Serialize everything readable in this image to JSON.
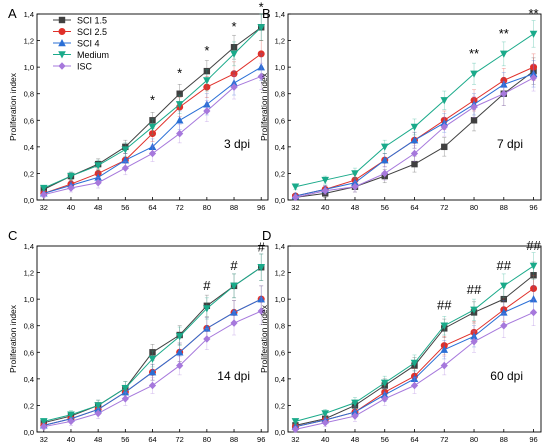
{
  "chart_data": [
    {
      "panel_label": "A",
      "type": "line",
      "x": [
        32,
        40,
        48,
        56,
        64,
        72,
        80,
        88,
        96
      ],
      "ylim": [
        0,
        1.4
      ],
      "yticks": [
        "0,0",
        "0,2",
        "0,4",
        "0,6",
        "0,8",
        "1,0",
        "1,2",
        "1,4"
      ],
      "ylabel": "Proliferation index",
      "annotation": "3 dpi",
      "legend": {
        "position": "top-left",
        "entries": [
          "SCI 1.5",
          "SCI 2.5",
          "SCI 4",
          "Medium",
          "ISC"
        ]
      },
      "significance": [
        {
          "x": 64,
          "mark": "*"
        },
        {
          "x": 72,
          "mark": "*"
        },
        {
          "x": 80,
          "mark": "*"
        },
        {
          "x": 88,
          "mark": "*"
        },
        {
          "x": 96,
          "mark": "*"
        }
      ],
      "series": [
        {
          "name": "SCI 1.5",
          "color": "#404040",
          "marker": "square",
          "values": [
            0.08,
            0.18,
            0.27,
            0.4,
            0.6,
            0.8,
            0.97,
            1.15,
            1.3
          ]
        },
        {
          "name": "SCI 2.5",
          "color": "#e0302a",
          "marker": "circle",
          "values": [
            0.05,
            0.12,
            0.2,
            0.3,
            0.5,
            0.7,
            0.85,
            0.95,
            1.1
          ]
        },
        {
          "name": "SCI 4",
          "color": "#2a6fd6",
          "marker": "triangle-up",
          "values": [
            0.05,
            0.11,
            0.17,
            0.3,
            0.4,
            0.6,
            0.72,
            0.88,
            1.0
          ]
        },
        {
          "name": "Medium",
          "color": "#1aaa8a",
          "marker": "triangle-down",
          "values": [
            0.09,
            0.18,
            0.26,
            0.38,
            0.55,
            0.72,
            0.9,
            1.1,
            1.3
          ]
        },
        {
          "name": "ISC",
          "color": "#a678dc",
          "marker": "diamond",
          "values": [
            0.04,
            0.09,
            0.13,
            0.24,
            0.35,
            0.5,
            0.67,
            0.85,
            0.93
          ]
        }
      ]
    },
    {
      "panel_label": "B",
      "type": "line",
      "x": [
        32,
        40,
        48,
        56,
        64,
        72,
        80,
        88,
        96
      ],
      "ylim": [
        0,
        1.4
      ],
      "yticks": [
        "0,0",
        "0,2",
        "0,4",
        "0,6",
        "0,8",
        "1,0",
        "1,2",
        "1,4"
      ],
      "ylabel": "Proliferation index",
      "annotation": "7 dpi",
      "significance": [
        {
          "x": 80,
          "mark": "**"
        },
        {
          "x": 88,
          "mark": "**"
        },
        {
          "x": 96,
          "mark": "**"
        }
      ],
      "series": [
        {
          "name": "SCI 1.5",
          "color": "#404040",
          "marker": "square",
          "values": [
            0.02,
            0.05,
            0.1,
            0.18,
            0.27,
            0.4,
            0.6,
            0.8,
            0.97
          ]
        },
        {
          "name": "SCI 2.5",
          "color": "#e0302a",
          "marker": "circle",
          "values": [
            0.03,
            0.08,
            0.15,
            0.3,
            0.45,
            0.6,
            0.75,
            0.9,
            1.0
          ]
        },
        {
          "name": "SCI 4",
          "color": "#2a6fd6",
          "marker": "triangle-up",
          "values": [
            0.03,
            0.08,
            0.13,
            0.3,
            0.45,
            0.58,
            0.72,
            0.87,
            0.95
          ]
        },
        {
          "name": "Medium",
          "color": "#1aaa8a",
          "marker": "triangle-down",
          "values": [
            0.1,
            0.15,
            0.2,
            0.4,
            0.55,
            0.75,
            0.95,
            1.1,
            1.25
          ]
        },
        {
          "name": "ISC",
          "color": "#a678dc",
          "marker": "diamond",
          "values": [
            0.02,
            0.07,
            0.1,
            0.2,
            0.35,
            0.55,
            0.7,
            0.8,
            0.92
          ]
        }
      ]
    },
    {
      "panel_label": "C",
      "type": "line",
      "x": [
        32,
        40,
        48,
        56,
        64,
        72,
        80,
        88,
        96
      ],
      "ylim": [
        0,
        1.4
      ],
      "yticks": [
        "0,0",
        "0,2",
        "0,4",
        "0,6",
        "0,8",
        "1,0",
        "1,2",
        "1,4"
      ],
      "ylabel": "Proliferation index",
      "annotation": "14 dpi",
      "significance": [
        {
          "x": 80,
          "mark": "#"
        },
        {
          "x": 88,
          "mark": "#"
        },
        {
          "x": 96,
          "mark": "#"
        }
      ],
      "series": [
        {
          "name": "SCI 1.5",
          "color": "#404040",
          "marker": "square",
          "values": [
            0.07,
            0.12,
            0.2,
            0.33,
            0.6,
            0.73,
            0.95,
            1.1,
            1.24
          ]
        },
        {
          "name": "SCI 2.5",
          "color": "#e0302a",
          "marker": "circle",
          "values": [
            0.05,
            0.1,
            0.17,
            0.3,
            0.45,
            0.6,
            0.78,
            0.9,
            1.0
          ]
        },
        {
          "name": "SCI 4",
          "color": "#2a6fd6",
          "marker": "triangle-up",
          "values": [
            0.05,
            0.1,
            0.17,
            0.3,
            0.45,
            0.6,
            0.78,
            0.9,
            1.0
          ]
        },
        {
          "name": "Medium",
          "color": "#1aaa8a",
          "marker": "triangle-down",
          "values": [
            0.08,
            0.13,
            0.2,
            0.33,
            0.55,
            0.72,
            0.93,
            1.1,
            1.24
          ]
        },
        {
          "name": "ISC",
          "color": "#a678dc",
          "marker": "diamond",
          "values": [
            0.04,
            0.08,
            0.14,
            0.25,
            0.35,
            0.5,
            0.7,
            0.82,
            0.91
          ]
        }
      ]
    },
    {
      "panel_label": "D",
      "type": "line",
      "x": [
        32,
        40,
        48,
        56,
        64,
        72,
        80,
        88,
        96
      ],
      "ylim": [
        0,
        1.4
      ],
      "yticks": [
        "0,0",
        "0,2",
        "0,4",
        "0,6",
        "0,8",
        "1,0",
        "1,2",
        "1,4"
      ],
      "ylabel": "Proliferation index",
      "annotation": "60 dpi",
      "significance": [
        {
          "x": 72,
          "mark": "##"
        },
        {
          "x": 80,
          "mark": "##"
        },
        {
          "x": 88,
          "mark": "##"
        },
        {
          "x": 96,
          "mark": "##"
        }
      ],
      "series": [
        {
          "name": "SCI 1.5",
          "color": "#404040",
          "marker": "square",
          "values": [
            0.05,
            0.1,
            0.2,
            0.35,
            0.5,
            0.78,
            0.9,
            1.0,
            1.18
          ]
        },
        {
          "name": "SCI 2.5",
          "color": "#e0302a",
          "marker": "circle",
          "values": [
            0.04,
            0.09,
            0.15,
            0.3,
            0.42,
            0.65,
            0.75,
            0.92,
            1.08
          ]
        },
        {
          "name": "SCI 4",
          "color": "#2a6fd6",
          "marker": "triangle-up",
          "values": [
            0.04,
            0.09,
            0.15,
            0.28,
            0.4,
            0.62,
            0.72,
            0.9,
            1.0
          ]
        },
        {
          "name": "Medium",
          "color": "#1aaa8a",
          "marker": "triangle-down",
          "values": [
            0.08,
            0.14,
            0.22,
            0.37,
            0.52,
            0.8,
            0.92,
            1.1,
            1.25
          ]
        },
        {
          "name": "ISC",
          "color": "#a678dc",
          "marker": "diamond",
          "values": [
            0.02,
            0.07,
            0.12,
            0.25,
            0.35,
            0.5,
            0.68,
            0.8,
            0.9
          ]
        }
      ]
    }
  ]
}
